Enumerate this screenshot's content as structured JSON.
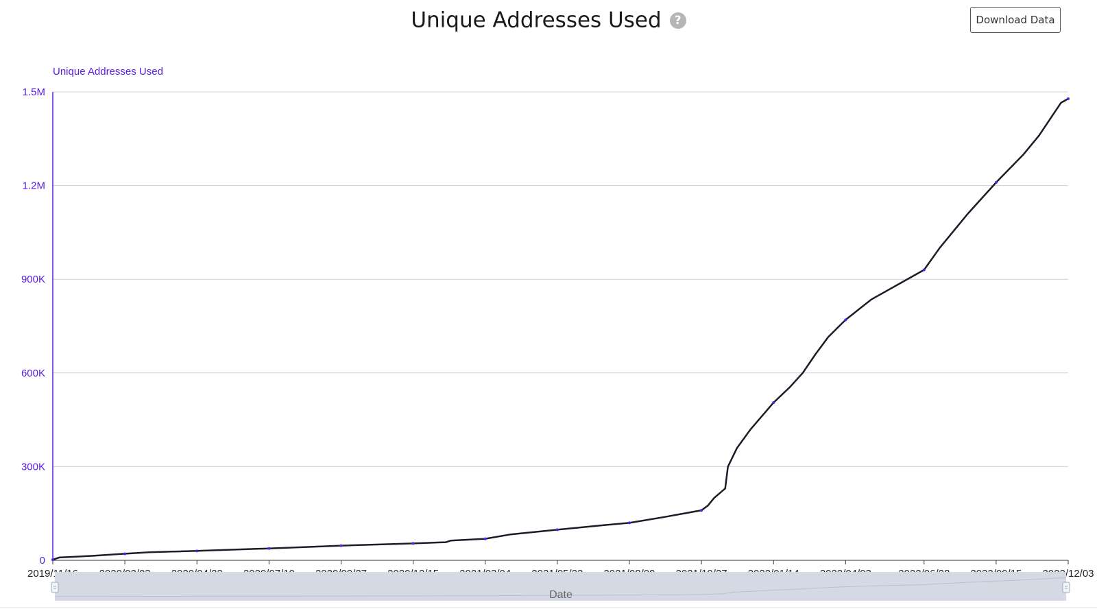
{
  "header": {
    "title": "Unique Addresses Used",
    "help_icon": "question-circle-icon",
    "download_label": "Download Data"
  },
  "colors": {
    "axis": "#5a1ee6",
    "line": "#1c1c28",
    "grid": "#d0d0d0",
    "navigator_bg": "#d4d9e3",
    "navigator_handle": "#9aa8c1"
  },
  "chart_data": {
    "type": "line",
    "title": "Unique Addresses Used",
    "ylabel": "Unique Addresses Used",
    "xlabel": "Date",
    "ylim": [
      0,
      1500000
    ],
    "xlim": [
      "2019-11-16",
      "2022-12-03"
    ],
    "y_ticks": [
      {
        "value": 0,
        "label": "0"
      },
      {
        "value": 300000,
        "label": "300K"
      },
      {
        "value": 600000,
        "label": "600K"
      },
      {
        "value": 900000,
        "label": "900K"
      },
      {
        "value": 1200000,
        "label": "1.2M"
      },
      {
        "value": 1500000,
        "label": "1.5M"
      }
    ],
    "x_ticks": [
      {
        "date": "2019-11-16",
        "label": "2019/11/16"
      },
      {
        "date": "2020-02-03",
        "label": "2020/02/03"
      },
      {
        "date": "2020-04-22",
        "label": "2020/04/22"
      },
      {
        "date": "2020-07-10",
        "label": "2020/07/10"
      },
      {
        "date": "2020-09-27",
        "label": "2020/09/27"
      },
      {
        "date": "2020-12-15",
        "label": "2020/12/15"
      },
      {
        "date": "2021-03-04",
        "label": "2021/03/04"
      },
      {
        "date": "2021-05-22",
        "label": "2021/05/22"
      },
      {
        "date": "2021-08-09",
        "label": "2021/08/09"
      },
      {
        "date": "2021-10-27",
        "label": "2021/10/27"
      },
      {
        "date": "2022-01-14",
        "label": "2022/01/14"
      },
      {
        "date": "2022-04-03",
        "label": "2022/04/03"
      },
      {
        "date": "2022-06-28",
        "label": "2022/06/28"
      },
      {
        "date": "2022-09-15",
        "label": "2022/09/15"
      },
      {
        "date": "2022-12-03",
        "label": "2022/12/03"
      }
    ],
    "grid": true,
    "navigator": true,
    "series": [
      {
        "name": "Unique Addresses Used",
        "points": [
          [
            "2019-11-16",
            2000
          ],
          [
            "2019-11-23",
            9000
          ],
          [
            "2019-12-15",
            12000
          ],
          [
            "2020-01-01",
            15000
          ],
          [
            "2020-02-03",
            21000
          ],
          [
            "2020-03-01",
            26000
          ],
          [
            "2020-04-22",
            30000
          ],
          [
            "2020-07-10",
            38000
          ],
          [
            "2020-09-27",
            47000
          ],
          [
            "2020-12-15",
            54000
          ],
          [
            "2021-01-20",
            58000
          ],
          [
            "2021-01-25",
            63000
          ],
          [
            "2021-03-04",
            69000
          ],
          [
            "2021-04-01",
            83000
          ],
          [
            "2021-05-22",
            98000
          ],
          [
            "2021-07-10",
            112000
          ],
          [
            "2021-08-09",
            120000
          ],
          [
            "2021-09-15",
            138000
          ],
          [
            "2021-10-27",
            160000
          ],
          [
            "2021-11-03",
            175000
          ],
          [
            "2021-11-10",
            200000
          ],
          [
            "2021-11-22",
            230000
          ],
          [
            "2021-11-25",
            300000
          ],
          [
            "2021-12-05",
            360000
          ],
          [
            "2021-12-20",
            420000
          ],
          [
            "2022-01-14",
            505000
          ],
          [
            "2022-02-01",
            555000
          ],
          [
            "2022-02-15",
            600000
          ],
          [
            "2022-03-01",
            660000
          ],
          [
            "2022-03-15",
            715000
          ],
          [
            "2022-04-03",
            770000
          ],
          [
            "2022-05-01",
            835000
          ],
          [
            "2022-06-28",
            930000
          ],
          [
            "2022-07-15",
            1000000
          ],
          [
            "2022-08-15",
            1110000
          ],
          [
            "2022-09-15",
            1210000
          ],
          [
            "2022-10-15",
            1300000
          ],
          [
            "2022-11-01",
            1360000
          ],
          [
            "2022-11-25",
            1465000
          ],
          [
            "2022-12-03",
            1478000
          ]
        ]
      }
    ]
  }
}
